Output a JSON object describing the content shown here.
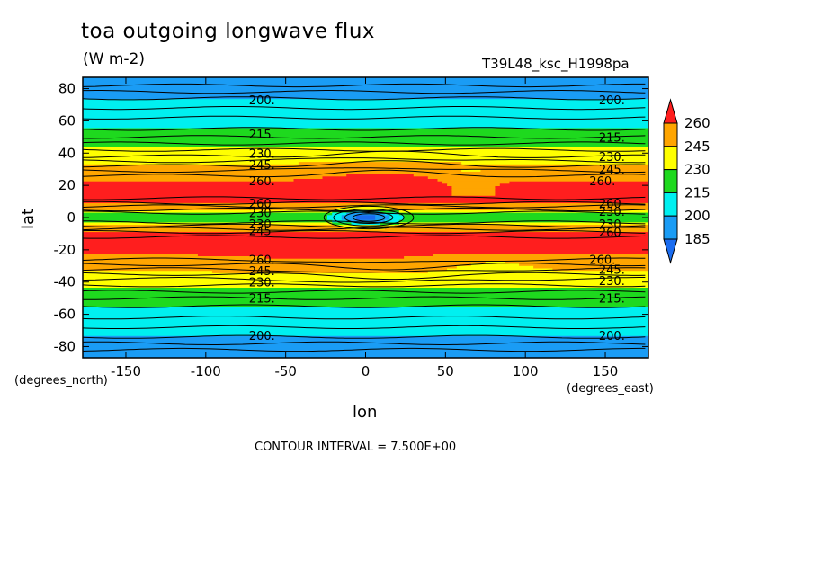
{
  "figure": {
    "title": "toa outgoing longwave flux",
    "units": "(W m-2)",
    "run_label": "T39L48_ksc_H1998pa",
    "x_units": "(degrees_east)",
    "y_units": "(degrees_north)",
    "contour_interval": "CONTOUR INTERVAL = 7.500E+00"
  },
  "chart_data": {
    "type": "heatmap",
    "title": "toa outgoing longwave flux",
    "xlabel": "lon",
    "ylabel": "lat",
    "xlim": [
      -177,
      177
    ],
    "ylim": [
      -87,
      87
    ],
    "x_ticks": [
      -150,
      -100,
      -50,
      0,
      50,
      100,
      150
    ],
    "y_ticks": [
      80,
      60,
      40,
      20,
      0,
      -20,
      -40,
      -60,
      -80
    ],
    "x_tick_labels": [
      "-150",
      "-100",
      "-50",
      "0",
      "50",
      "100",
      "150"
    ],
    "y_tick_labels": [
      "80",
      "60",
      "40",
      "20",
      "0",
      "-20",
      "-40",
      "-60",
      "-80"
    ],
    "grid": false,
    "legend_position": "right",
    "colorbar": {
      "levels": [
        185,
        200,
        215,
        230,
        245,
        260
      ],
      "labels": [
        "260",
        "245",
        "230",
        "215",
        "200",
        "185"
      ],
      "colors": {
        "below_185": "#1a6cf0",
        "185_200": "#1a9cf5",
        "200_215": "#00f0f0",
        "215_230": "#1ed91e",
        "230_245": "#ffff00",
        "245_260": "#ffa500",
        "above_260": "#ff1e1e"
      }
    },
    "contour_labels": [
      {
        "text": "200.",
        "lon": -73,
        "lat": 73
      },
      {
        "text": "200.",
        "lon": 146,
        "lat": 73
      },
      {
        "text": "215.",
        "lon": -73,
        "lat": 52
      },
      {
        "text": "215.",
        "lon": 146,
        "lat": 50
      },
      {
        "text": "230.",
        "lon": -73,
        "lat": 40
      },
      {
        "text": "230.",
        "lon": 146,
        "lat": 38
      },
      {
        "text": "245.",
        "lon": -73,
        "lat": 33
      },
      {
        "text": "245.",
        "lon": 146,
        "lat": 30
      },
      {
        "text": "260.",
        "lon": -73,
        "lat": 23
      },
      {
        "text": "260.",
        "lon": 140,
        "lat": 23
      },
      {
        "text": "260",
        "lon": -73,
        "lat": 9
      },
      {
        "text": "260",
        "lon": 146,
        "lat": 9
      },
      {
        "text": "230",
        "lon": -73,
        "lat": 3
      },
      {
        "text": "230.",
        "lon": 146,
        "lat": 4
      },
      {
        "text": "230",
        "lon": -73,
        "lat": -4
      },
      {
        "text": "230",
        "lon": 146,
        "lat": -4
      },
      {
        "text": "245",
        "lon": -73,
        "lat": -8
      },
      {
        "text": "260",
        "lon": 146,
        "lat": -9
      },
      {
        "text": "260.",
        "lon": -73,
        "lat": -26
      },
      {
        "text": "260.",
        "lon": 140,
        "lat": -26
      },
      {
        "text": "245.",
        "lon": -73,
        "lat": -33
      },
      {
        "text": "245.",
        "lon": 146,
        "lat": -32
      },
      {
        "text": "230.",
        "lon": -73,
        "lat": -40
      },
      {
        "text": "230.",
        "lon": 146,
        "lat": -39
      },
      {
        "text": "215.",
        "lon": -73,
        "lat": -50
      },
      {
        "text": "215.",
        "lon": 146,
        "lat": -50
      },
      {
        "text": "200.",
        "lon": -73,
        "lat": -73
      },
      {
        "text": "200.",
        "lon": 146,
        "lat": -73
      }
    ]
  }
}
